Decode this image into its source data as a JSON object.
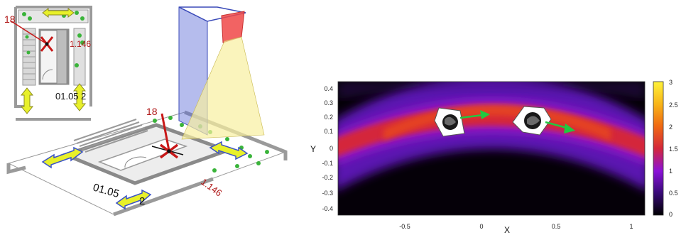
{
  "figure": {
    "inset_plan": {
      "marker_id": "18",
      "dimension_label": "1.146",
      "room_label": "01.05",
      "room_label_suffix": "2"
    },
    "perspective_view": {
      "marker_id": "18",
      "dimension_label": "1.146",
      "room_label": "01.05",
      "room_label_suffix": "2"
    },
    "heatmap": {
      "xlabel": "X",
      "ylabel": "Y",
      "x_ticks": [
        "-0.5",
        "0",
        "0.5",
        "1"
      ],
      "y_ticks": [
        "0.4",
        "0.3",
        "0.2",
        "0.1",
        "0",
        "-0.1",
        "-0.2",
        "-0.3",
        "-0.4"
      ],
      "colorbar_ticks": [
        "3",
        "2.5",
        "2",
        "1.5",
        "1",
        "0.5",
        "0"
      ],
      "colorscale": [
        "#000000",
        "#3a0a7a",
        "#8a12d8",
        "#d4283a",
        "#f06a12",
        "#f8b418",
        "#fff23a"
      ]
    }
  },
  "colors": {
    "plan_gray": "#9a9a9a",
    "arrow_yellow": "#e8f02a",
    "arrow_blue": "#3a52c8",
    "dot_green": "#3ab43a",
    "marker_red": "#c81818",
    "cam_blue": "#5a6ad8",
    "cam_red": "#f04848",
    "cone_yellow": "#f8f0a0",
    "vector_green": "#22c840"
  }
}
